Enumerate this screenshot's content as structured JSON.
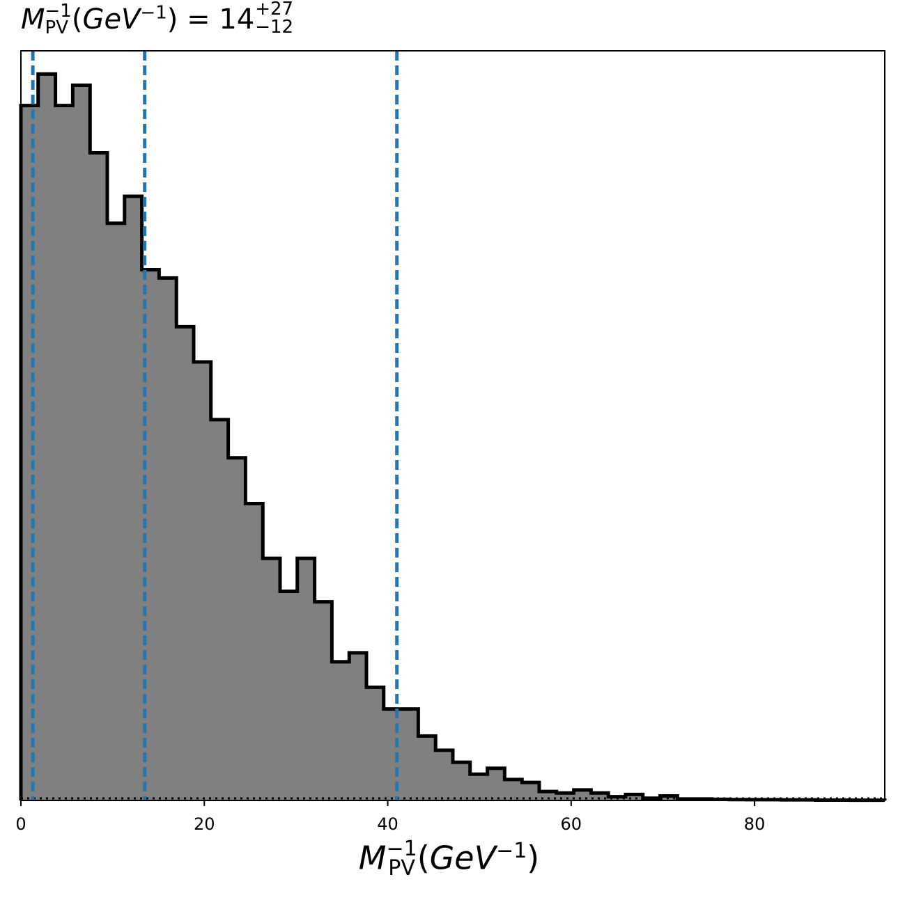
{
  "chart_data": {
    "type": "histogram",
    "title": {
      "symbol": "M",
      "sup": "−1",
      "sub": "PV",
      "unit_open": "(",
      "unit_base": "GeV",
      "unit_sup": "−1",
      "unit_close": ")",
      "equals": " = ",
      "value": "14",
      "err_plus": "+27",
      "err_minus": "−12"
    },
    "xlabel": {
      "symbol": "M",
      "sup": "−1",
      "sub": "PV",
      "unit_open": "(",
      "unit_base": "GeV",
      "unit_sup": "−1",
      "unit_close": ")"
    },
    "ylabel": "",
    "xlim": [
      0,
      94.2
    ],
    "ylim": [
      0,
      1
    ],
    "x_ticks": [
      0,
      20,
      40,
      60,
      80
    ],
    "x_tick_labels": [
      "0",
      "20",
      "40",
      "60",
      "80"
    ],
    "bin_edges": [
      0.0,
      1.88,
      3.77,
      5.65,
      7.54,
      9.42,
      11.3,
      13.19,
      15.07,
      16.96,
      18.84,
      20.72,
      22.61,
      24.49,
      26.38,
      28.26,
      30.14,
      32.03,
      33.91,
      35.8,
      37.68,
      39.56,
      41.45,
      43.33,
      45.22,
      47.1,
      48.98,
      50.87,
      52.75,
      54.64,
      56.52,
      58.4,
      60.29,
      62.17,
      64.06,
      65.94,
      67.82,
      69.71,
      71.59,
      73.48,
      75.36,
      77.24,
      79.13,
      81.01,
      82.9,
      84.78,
      86.66,
      88.55,
      90.43,
      92.32,
      94.2
    ],
    "counts": [
      0.927,
      0.969,
      0.927,
      0.954,
      0.864,
      0.77,
      0.806,
      0.708,
      0.697,
      0.632,
      0.585,
      0.508,
      0.457,
      0.396,
      0.323,
      0.279,
      0.323,
      0.265,
      0.185,
      0.197,
      0.151,
      0.122,
      0.122,
      0.086,
      0.067,
      0.051,
      0.035,
      0.043,
      0.028,
      0.024,
      0.012,
      0.01,
      0.014,
      0.01,
      0.005,
      0.008,
      0.003,
      0.006,
      0.002,
      0.002,
      0.0015,
      0.0012,
      0.001,
      0.001,
      0.0008,
      0.0008,
      0.0005,
      0.0005,
      0.0003,
      0.0003
    ],
    "fill_color": "#808080",
    "edge_color": "#000000",
    "percentile_lines": {
      "values": [
        1.3,
        13.5,
        41.0
      ],
      "color": "#1f77b4",
      "style": "dashed"
    },
    "baseline": {
      "value": 0,
      "color": "#000000",
      "style": "dotted"
    },
    "grid": false,
    "legend": false
  }
}
